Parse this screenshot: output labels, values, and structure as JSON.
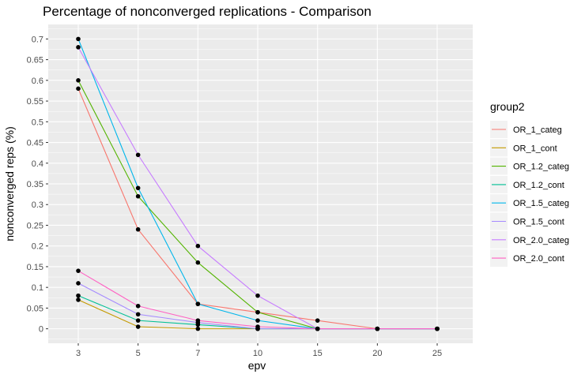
{
  "chart_data": {
    "type": "line",
    "title": "Percentage of nonconverged replications - Comparison",
    "xlabel": "epv",
    "ylabel": "nonconverged reps (%)",
    "categories": [
      "3",
      "5",
      "7",
      "10",
      "15",
      "20",
      "25"
    ],
    "y_ticks": [
      "0",
      "0.05",
      "0.1",
      "0.15",
      "0.2",
      "0.25",
      "0.3",
      "0.35",
      "0.4",
      "0.45",
      "0.5",
      "0.55",
      "0.6",
      "0.65",
      "0.7"
    ],
    "ylim": [
      -0.035,
      0.735
    ],
    "x_scale": "discrete",
    "grid": true,
    "points_shown": true,
    "legend": {
      "title": "group2",
      "position": "right"
    },
    "series": [
      {
        "name": "OR_1_categ",
        "color": "#F8766D",
        "values": [
          0.58,
          0.24,
          0.06,
          0.04,
          0.02,
          0,
          0
        ]
      },
      {
        "name": "OR_1_cont",
        "color": "#C49A00",
        "values": [
          0.07,
          0.005,
          0,
          0,
          0,
          0,
          0
        ]
      },
      {
        "name": "OR_1.2_categ",
        "color": "#53B400",
        "values": [
          0.6,
          0.32,
          0.16,
          0.04,
          0,
          0,
          0
        ]
      },
      {
        "name": "OR_1.2_cont",
        "color": "#00C094",
        "values": [
          0.08,
          0.02,
          0.01,
          0,
          0,
          0,
          0
        ]
      },
      {
        "name": "OR_1.5_categ",
        "color": "#00B6EB",
        "values": [
          0.7,
          0.34,
          0.06,
          0.02,
          0,
          0,
          0
        ]
      },
      {
        "name": "OR_1.5_cont",
        "color": "#A58AFF",
        "values": [
          0.11,
          0.035,
          0.015,
          0,
          0,
          0,
          0
        ]
      },
      {
        "name": "OR_2.0_categ",
        "color": "#C77CFF",
        "values": [
          0.68,
          0.42,
          0.2,
          0.08,
          0,
          0,
          0
        ]
      },
      {
        "name": "OR_2.0_cont",
        "color": "#FF61C3",
        "values": [
          0.14,
          0.055,
          0.02,
          0.005,
          0,
          0,
          0
        ]
      }
    ]
  }
}
